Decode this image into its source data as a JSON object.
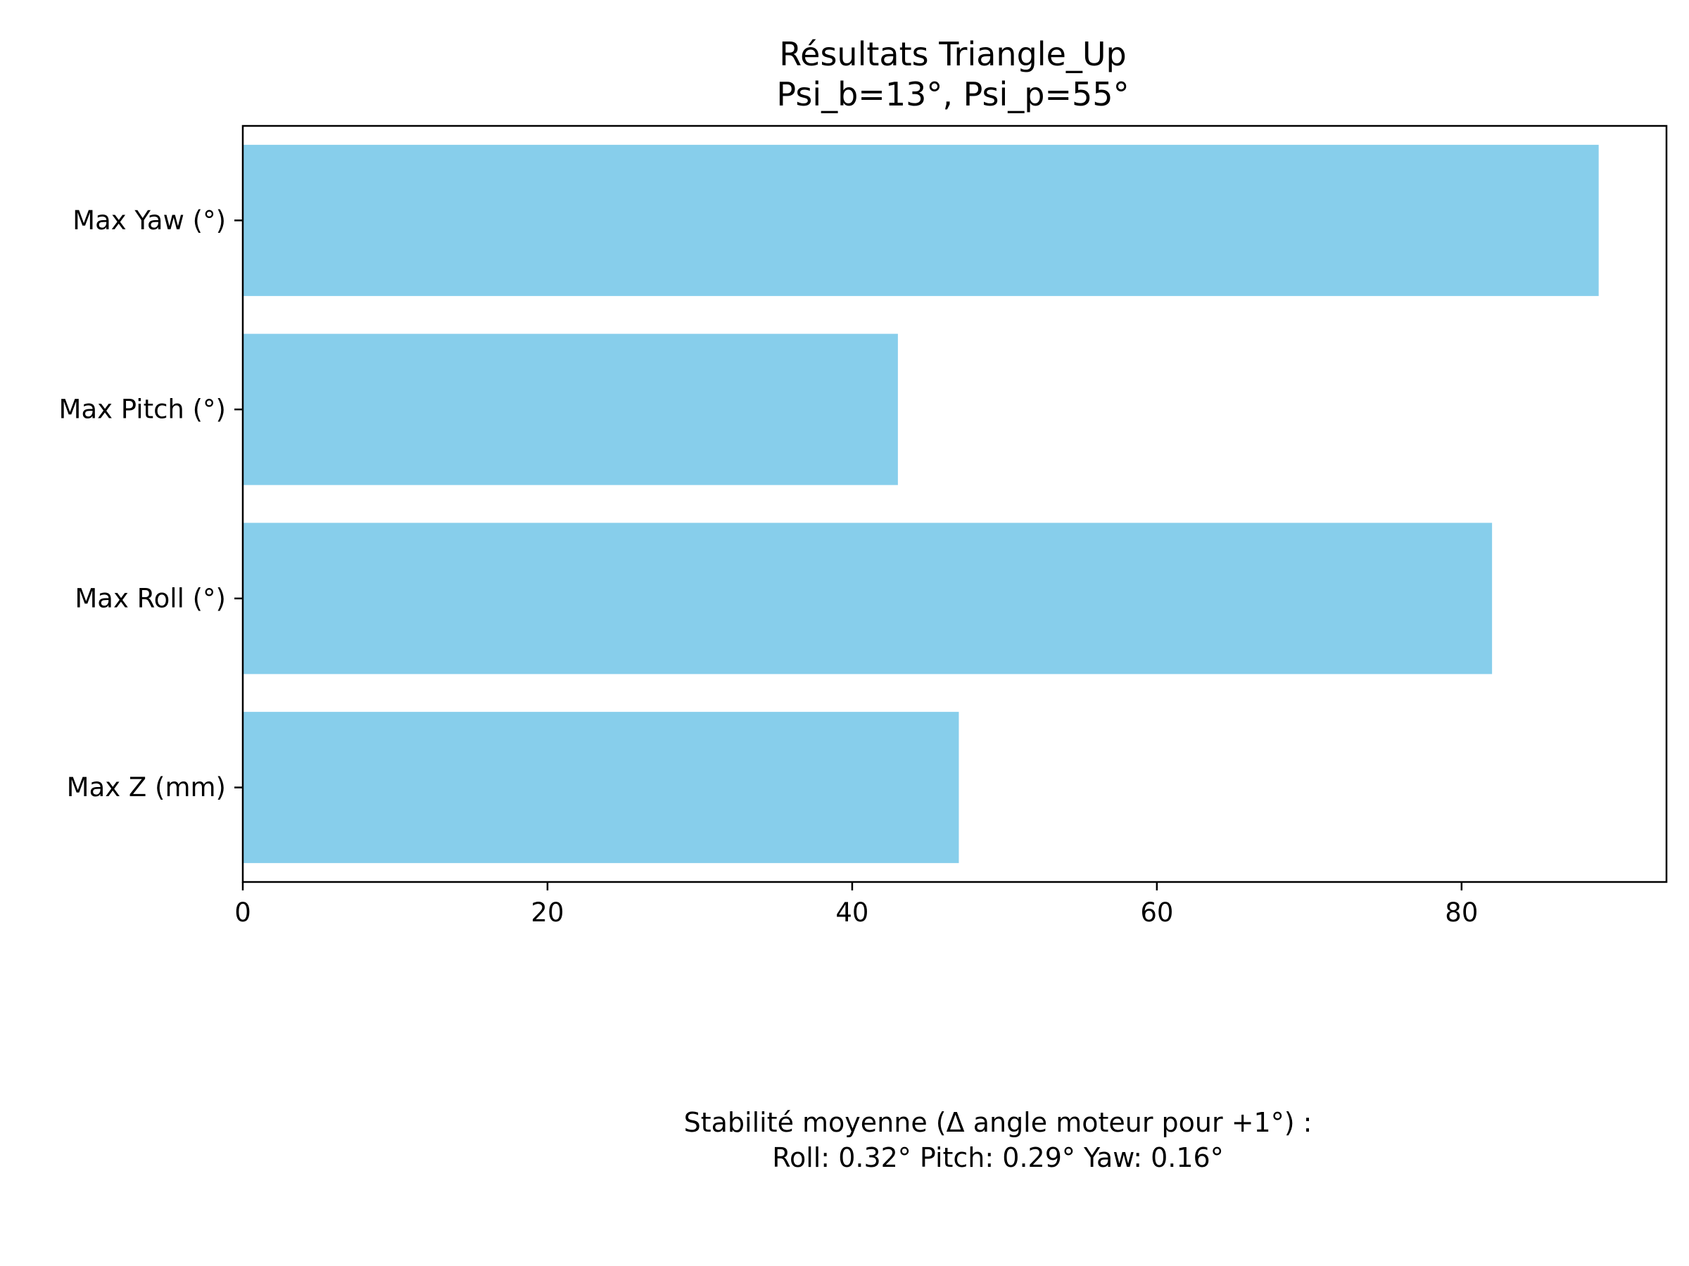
{
  "chart_data": {
    "type": "bar",
    "orientation": "horizontal",
    "title": "Résultats Triangle_Up",
    "subtitle": "Psi_b=13°, Psi_p=55°",
    "categories": [
      "Max Yaw (°)",
      "Max Pitch (°)",
      "Max Roll (°)",
      "Max Z (mm)"
    ],
    "values": [
      89,
      43,
      82,
      47
    ],
    "xlim": [
      0,
      93.45
    ],
    "xticks": [
      0,
      20,
      40,
      60,
      80
    ],
    "xlabel": "",
    "ylabel": "",
    "grid": false,
    "legend": "none",
    "bar_color": "#87CEEB"
  },
  "footnote": {
    "line1": "Stabilité moyenne (Δ angle moteur pour +1°) :",
    "line2": "Roll: 0.32°   Pitch: 0.29°   Yaw: 0.16°"
  }
}
